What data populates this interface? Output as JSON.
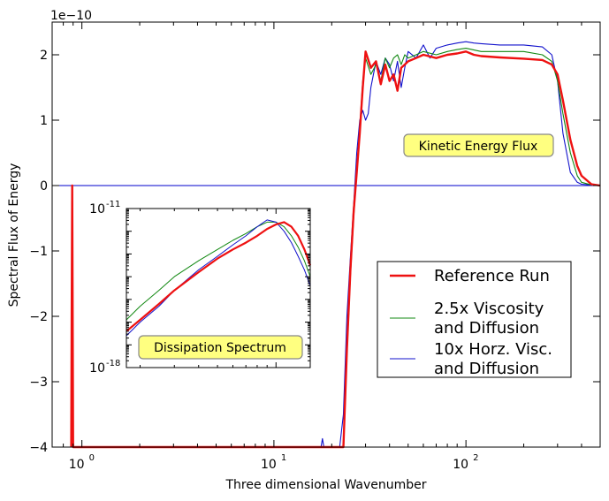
{
  "chart_data": {
    "type": "line",
    "xscale": "log",
    "xlabel": "Three dimensional Wavenumber",
    "ylabel": "Spectral Flux of Energy",
    "y_offset_label": "1e−10",
    "xlim": [
      0.7,
      500
    ],
    "ylim": [
      -4,
      2.5
    ],
    "x_ticks": [
      {
        "value": 1,
        "base": "10",
        "exp": "0"
      },
      {
        "value": 10,
        "base": "10",
        "exp": "1"
      },
      {
        "value": 100,
        "base": "10",
        "exp": "2"
      }
    ],
    "y_ticks": [
      {
        "value": -4,
        "label": "−4"
      },
      {
        "value": -3,
        "label": "−3"
      },
      {
        "value": -2,
        "label": "−2"
      },
      {
        "value": -1,
        "label": "−1"
      },
      {
        "value": 0,
        "label": "0"
      },
      {
        "value": 1,
        "label": "1"
      },
      {
        "value": 2,
        "label": "2"
      }
    ],
    "annotation": "Kinetic Energy Flux",
    "colors": {
      "reference": "#ee1111",
      "visc25": "#118811",
      "visc10": "#1111cc",
      "zero_line": "#0000cc",
      "label_bg": "#ffff80",
      "label_border": "#888888"
    },
    "legend": {
      "position": "lower-right",
      "entries": [
        {
          "key": "reference",
          "lines": [
            "Reference Run"
          ]
        },
        {
          "key": "visc25",
          "lines": [
            "2.5x Viscosity",
            "and Diffusion"
          ]
        },
        {
          "key": "visc10",
          "lines": [
            "10x Horz. Visc.",
            "and Diffusion"
          ]
        }
      ]
    },
    "series": [
      {
        "key": "reference",
        "name": "Reference Run",
        "x": [
          0.88,
          0.885,
          0.89,
          0.895,
          0.9,
          23,
          24,
          25,
          26,
          27,
          28,
          29,
          30,
          32,
          34,
          36,
          38,
          40,
          42,
          44,
          46,
          48,
          50,
          55,
          60,
          70,
          80,
          90,
          100,
          110,
          120,
          150,
          200,
          250,
          280,
          300,
          320,
          350,
          380,
          400,
          450,
          500
        ],
        "y": [
          -4,
          -2,
          0,
          -2,
          -4,
          -4,
          -2.5,
          -1.3,
          -0.4,
          0.2,
          0.8,
          1.5,
          2.05,
          1.8,
          1.9,
          1.55,
          1.85,
          1.6,
          1.7,
          1.45,
          1.8,
          1.85,
          1.9,
          1.95,
          2.0,
          1.95,
          2.0,
          2.02,
          2.05,
          2.0,
          1.98,
          1.96,
          1.94,
          1.92,
          1.85,
          1.7,
          1.3,
          0.7,
          0.3,
          0.15,
          0.02,
          0
        ]
      },
      {
        "key": "visc25",
        "name": "2.5x Viscosity and Diffusion",
        "x": [
          23,
          24,
          25,
          26,
          27,
          28,
          29,
          30,
          32,
          34,
          36,
          38,
          40,
          42,
          44,
          46,
          48,
          50,
          55,
          60,
          70,
          80,
          90,
          100,
          120,
          150,
          200,
          250,
          280,
          300,
          320,
          350,
          380,
          400,
          450,
          500
        ],
        "y": [
          -4,
          -2.6,
          -1.4,
          -0.5,
          0.2,
          0.9,
          1.6,
          1.95,
          1.7,
          1.85,
          1.6,
          1.95,
          1.8,
          1.95,
          2.0,
          1.85,
          2.0,
          1.95,
          2.0,
          2.05,
          2.0,
          2.05,
          2.08,
          2.1,
          2.05,
          2.05,
          2.05,
          2.0,
          1.9,
          1.6,
          1.1,
          0.5,
          0.15,
          0.05,
          0.01,
          0
        ]
      },
      {
        "key": "visc10",
        "name": "10x Horz. Visc. and Diffusion",
        "x": [
          17.6,
          17.9,
          18.2,
          18.5,
          19,
          20,
          21,
          22,
          23,
          24,
          25,
          26,
          27,
          28,
          29,
          30,
          31,
          32,
          34,
          36,
          38,
          40,
          42,
          44,
          46,
          48,
          50,
          55,
          60,
          65,
          70,
          80,
          90,
          100,
          110,
          120,
          150,
          200,
          250,
          280,
          300,
          320,
          350,
          380,
          400,
          450,
          500
        ],
        "y": [
          -4,
          -3.87,
          -4,
          -4,
          -4,
          -4,
          -4,
          -4,
          -3.5,
          -2.0,
          -1.1,
          -0.3,
          0.5,
          1.0,
          1.15,
          1.0,
          1.1,
          1.5,
          1.9,
          1.7,
          1.95,
          1.85,
          1.6,
          1.9,
          1.5,
          1.8,
          2.05,
          1.95,
          2.15,
          1.95,
          2.1,
          2.15,
          2.18,
          2.2,
          2.18,
          2.17,
          2.15,
          2.15,
          2.12,
          2.0,
          1.6,
          0.8,
          0.2,
          0.05,
          0.02,
          0.01,
          0
        ]
      }
    ],
    "inset": {
      "type": "line",
      "xscale": "log",
      "yscale": "log",
      "label": "Dissipation Spectrum",
      "y_ticks": [
        {
          "value": -11,
          "base": "10",
          "exp": "-11"
        },
        {
          "value": -18,
          "base": "10",
          "exp": "-18"
        }
      ],
      "xlim": [
        1.7,
        15
      ],
      "ylim_log10": [
        -18,
        -11
      ],
      "series": [
        {
          "key": "reference",
          "x": [
            1.7,
            2,
            2.5,
            3,
            4,
            5,
            6,
            7,
            8,
            9,
            10,
            11,
            12,
            13,
            14,
            15
          ],
          "y_log10": [
            -16.4,
            -15.9,
            -15.2,
            -14.6,
            -13.8,
            -13.2,
            -12.8,
            -12.5,
            -12.2,
            -11.9,
            -11.7,
            -11.6,
            -11.8,
            -12.2,
            -12.8,
            -13.5
          ]
        },
        {
          "key": "visc25",
          "x": [
            1.7,
            2,
            2.5,
            3,
            4,
            5,
            6,
            7,
            8,
            9,
            10,
            11,
            12,
            13,
            14,
            15
          ],
          "y_log10": [
            -15.9,
            -15.3,
            -14.6,
            -14.0,
            -13.3,
            -12.8,
            -12.4,
            -12.1,
            -11.8,
            -11.6,
            -11.6,
            -11.8,
            -12.2,
            -12.7,
            -13.3,
            -14.0
          ]
        },
        {
          "key": "visc10",
          "x": [
            1.7,
            2,
            2.5,
            3,
            4,
            5,
            6,
            7,
            8,
            9,
            10,
            11,
            12,
            13,
            14,
            15
          ],
          "y_log10": [
            -16.6,
            -16.0,
            -15.3,
            -14.6,
            -13.7,
            -13.1,
            -12.6,
            -12.2,
            -11.8,
            -11.5,
            -11.6,
            -12.0,
            -12.5,
            -13.1,
            -13.7,
            -14.4
          ]
        }
      ]
    }
  }
}
